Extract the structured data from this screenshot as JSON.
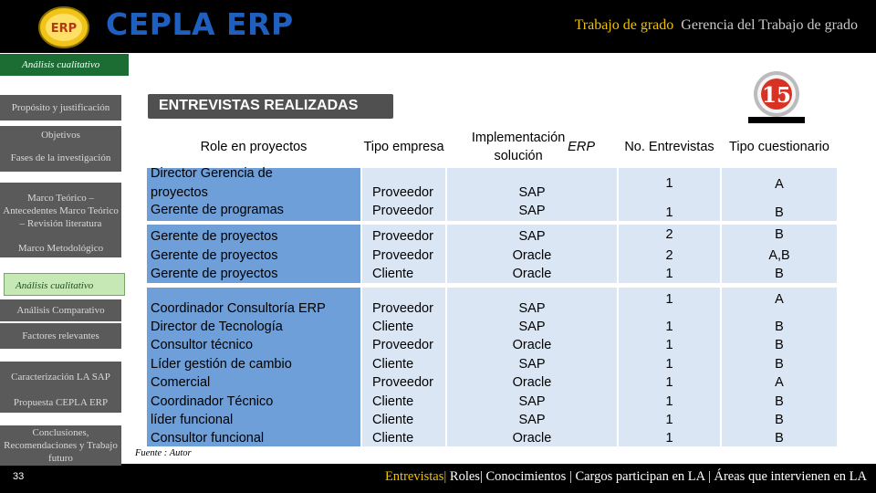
{
  "header": {
    "app_title": "CEPLA ERP",
    "logo_text": "ERP",
    "title_primary": "Trabajo de grado",
    "title_secondary": "Gerencia del Trabajo de grado"
  },
  "section_tab": "Análisis cualitativo",
  "sidebar": {
    "items": [
      "Propósito y justificación",
      "Objetivos",
      "Fases de la investigación",
      "Marco Teórico – Antecedentes Marco Teórico – Revisión literatura",
      "Marco Metodológico",
      "Análisis cualitativo",
      "Análisis Comparativo",
      "Factores relevantes",
      "Caracterización LA SAP",
      "Propuesta CEPLA ERP",
      "Conclusiones, Recomendaciones y Trabajo futuro"
    ],
    "active_index": 5
  },
  "heading": "ENTREVISTAS REALIZADAS",
  "badge_number": "15",
  "table": {
    "headers": [
      "Role en proyectos",
      "Tipo empresa",
      "Implementación solución ERP",
      "No. Entrevistas",
      "Tipo cuestionario"
    ],
    "groups": [
      {
        "roles": [
          "Director Gerencia de proyectos",
          "Gerente de programas"
        ],
        "tipo": [
          "Proveedor",
          "Proveedor"
        ],
        "impl": [
          "SAP",
          "SAP"
        ],
        "num": [
          "1",
          "1"
        ],
        "cuest": [
          "A",
          "B"
        ]
      },
      {
        "roles": [
          "Gerente de proyectos",
          "Gerente de proyectos",
          "Gerente de proyectos"
        ],
        "tipo": [
          "Proveedor",
          "Proveedor",
          "Cliente"
        ],
        "impl": [
          "SAP",
          "Oracle",
          "Oracle"
        ],
        "num": [
          "2",
          "2",
          "1"
        ],
        "cuest": [
          "B",
          "A,B",
          "B"
        ]
      },
      {
        "roles": [
          "Coordinador Consultoría ERP",
          "Director de Tecnología",
          "Consultor técnico",
          "Líder gestión de cambio",
          "Comercial",
          "Coordinador Técnico",
          "líder funcional",
          "Consultor funcional"
        ],
        "tipo": [
          "Proveedor",
          "Cliente",
          "Proveedor",
          "Cliente",
          "Proveedor",
          "Cliente",
          "Cliente",
          "Cliente"
        ],
        "impl": [
          "SAP",
          "SAP",
          "Oracle",
          "SAP",
          "Oracle",
          "SAP",
          "SAP",
          "Oracle"
        ],
        "num": [
          "1",
          "1",
          "1",
          "1",
          "1",
          "1",
          "1",
          "1"
        ],
        "cuest": [
          "A",
          "B",
          "B",
          "B",
          "A",
          "B",
          "B",
          "B"
        ]
      }
    ]
  },
  "fuente": "Fuente : Autor",
  "page_number": "33",
  "footer_nav": {
    "active": "Entrevistas",
    "items": [
      "Roles",
      "Conocimientos",
      "Cargos participan en LA",
      "Áreas que intervienen en LA"
    ]
  },
  "colors": {
    "accent_yellow": "#f2c200",
    "title_blue": "#1e5fbf",
    "role_col_blue": "#6e9fd8",
    "cell_light_blue": "#dbe6f4",
    "section_green": "#1b6d33"
  }
}
